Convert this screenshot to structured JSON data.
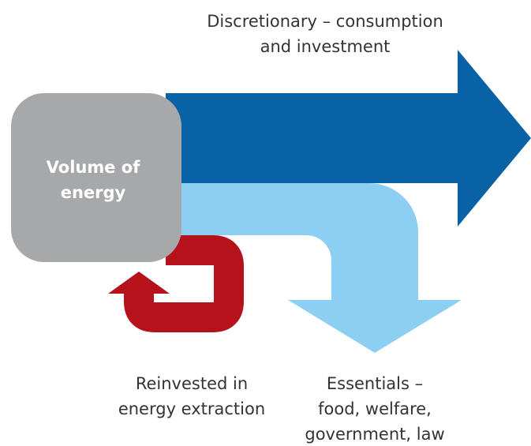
{
  "labels": {
    "discretionary": [
      "Discretionary – consumption",
      "and investment"
    ],
    "volume": [
      "Volume of",
      "energy"
    ],
    "reinvested": [
      "Reinvested in",
      "energy extraction"
    ],
    "essentials": [
      "Essentials –",
      "food, welfare,",
      "government, law"
    ]
  }
}
